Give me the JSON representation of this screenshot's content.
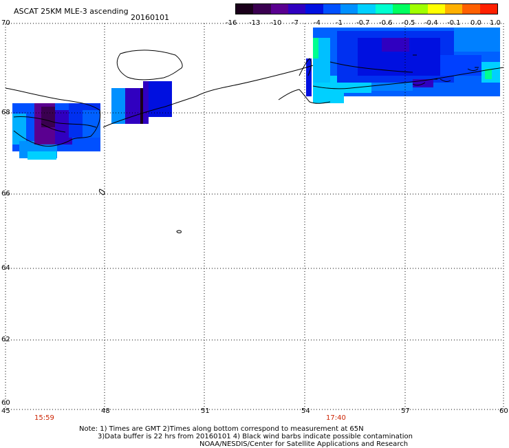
{
  "header": {
    "title": "ASCAT 25KM MLE-3 ascending",
    "date": "20160101"
  },
  "colorbar": {
    "labels": [
      "-16",
      "-13",
      "-10",
      "-7",
      "-4",
      "-1",
      "-0.7",
      "-0.6",
      "-0.5",
      "-0.4",
      "-0.1",
      "0.0",
      "1.0"
    ],
    "colors": [
      "#1a001a",
      "#3a0050",
      "#5a0090",
      "#3000c0",
      "#0010e0",
      "#0050ff",
      "#0090ff",
      "#00d0ff",
      "#00ffd0",
      "#00ff60",
      "#a0ff00",
      "#ffff00",
      "#ffb000",
      "#ff6000",
      "#ff2000"
    ]
  },
  "axes": {
    "lon_labels": [
      "45",
      "48",
      "51",
      "54",
      "57",
      "60"
    ],
    "lat_labels": [
      "70",
      "68",
      "66",
      "64",
      "62",
      "60"
    ]
  },
  "times": {
    "left": "15:59",
    "right": "17:40"
  },
  "notes": {
    "line1": "Note: 1) Times are GMT 2)Times along bottom correspond to measurement at 65N",
    "line2": "3)Data buffer is 22 hrs from 20160101 4) Black wind barbs indicate possible contamination",
    "line3": "NOAA/NESDIS/Center for Satellite Applications and Research"
  }
}
